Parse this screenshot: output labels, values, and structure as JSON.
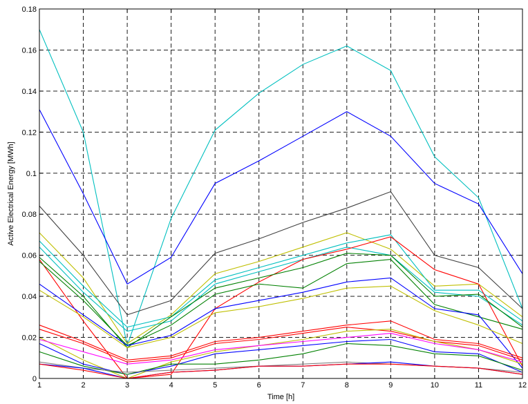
{
  "chart_data": {
    "type": "line",
    "title": "",
    "xlabel": "Time [h]",
    "ylabel": "Active Electrical Energy [MWh]",
    "xlim": [
      1,
      12
    ],
    "ylim": [
      0,
      0.18
    ],
    "grid": true,
    "x": [
      1,
      2,
      3,
      4,
      5,
      6,
      7,
      8,
      9,
      10,
      11,
      12
    ],
    "x_tick_labels": [
      "1",
      "2",
      "3",
      "4",
      "5",
      "6",
      "7",
      "8",
      "9",
      "10",
      "11",
      "12"
    ],
    "y_ticks": [
      0,
      0.02,
      0.04,
      0.06,
      0.08,
      0.1,
      0.12,
      0.14,
      0.16,
      0.18
    ],
    "y_tick_labels": [
      "0",
      "0.02",
      "0.04",
      "0.06",
      "0.08",
      "0.1",
      "0.12",
      "0.14",
      "0.16",
      "0.18"
    ],
    "series": [
      {
        "color": "#00bfbf",
        "values": [
          0.17,
          0.12,
          0.016,
          0.078,
          0.121,
          0.139,
          0.153,
          0.162,
          0.15,
          0.108,
          0.088,
          0.034
        ]
      },
      {
        "color": "#0000ff",
        "values": [
          0.131,
          0.09,
          0.046,
          0.059,
          0.095,
          0.106,
          0.118,
          0.13,
          0.118,
          0.095,
          0.085,
          0.051
        ]
      },
      {
        "color": "#404040",
        "values": [
          0.084,
          0.06,
          0.031,
          0.038,
          0.061,
          0.068,
          0.076,
          0.083,
          0.091,
          0.06,
          0.054,
          0.034
        ]
      },
      {
        "color": "#bfbf00",
        "values": [
          0.071,
          0.049,
          0.017,
          0.031,
          0.051,
          0.057,
          0.064,
          0.071,
          0.063,
          0.045,
          0.046,
          0.03
        ]
      },
      {
        "color": "#00bfbf",
        "values": [
          0.067,
          0.045,
          0.025,
          0.03,
          0.048,
          0.054,
          0.06,
          0.066,
          0.07,
          0.043,
          0.043,
          0.028
        ]
      },
      {
        "color": "#00bfbf",
        "values": [
          0.064,
          0.042,
          0.023,
          0.028,
          0.046,
          0.052,
          0.058,
          0.064,
          0.06,
          0.042,
          0.04,
          0.026
        ]
      },
      {
        "color": "#ff0000",
        "values": [
          0.058,
          0.028,
          0.0,
          0.002,
          0.034,
          0.047,
          0.058,
          0.063,
          0.069,
          0.053,
          0.046,
          0.006
        ]
      },
      {
        "color": "#008000",
        "values": [
          0.059,
          0.04,
          0.015,
          0.03,
          0.044,
          0.049,
          0.054,
          0.061,
          0.06,
          0.04,
          0.041,
          0.025
        ]
      },
      {
        "color": "#008000",
        "values": [
          0.057,
          0.038,
          0.016,
          0.026,
          0.041,
          0.046,
          0.044,
          0.056,
          0.058,
          0.036,
          0.03,
          0.024
        ]
      },
      {
        "color": "#0000ff",
        "values": [
          0.046,
          0.031,
          0.016,
          0.021,
          0.034,
          0.038,
          0.042,
          0.047,
          0.049,
          0.034,
          0.031,
          0.005
        ]
      },
      {
        "color": "#bfbf00",
        "values": [
          0.043,
          0.03,
          0.015,
          0.02,
          0.032,
          0.035,
          0.039,
          0.044,
          0.045,
          0.033,
          0.026,
          0.017
        ]
      },
      {
        "color": "#ff0000",
        "values": [
          0.026,
          0.018,
          0.009,
          0.011,
          0.018,
          0.02,
          0.023,
          0.026,
          0.028,
          0.019,
          0.017,
          0.01
        ]
      },
      {
        "color": "#ff0000",
        "values": [
          0.024,
          0.017,
          0.008,
          0.01,
          0.017,
          0.019,
          0.022,
          0.025,
          0.023,
          0.018,
          0.016,
          0.009
        ]
      },
      {
        "color": "#bfbf00",
        "values": [
          0.02,
          0.009,
          0.0,
          0.008,
          0.013,
          0.016,
          0.019,
          0.023,
          0.024,
          0.018,
          0.014,
          0.007
        ]
      },
      {
        "color": "#ff00ff",
        "values": [
          0.019,
          0.013,
          0.007,
          0.009,
          0.014,
          0.016,
          0.018,
          0.02,
          0.022,
          0.017,
          0.014,
          0.008
        ]
      },
      {
        "color": "#0000ff",
        "values": [
          0.017,
          0.007,
          0.002,
          0.006,
          0.012,
          0.014,
          0.016,
          0.018,
          0.019,
          0.013,
          0.012,
          0.003
        ]
      },
      {
        "color": "#008000",
        "values": [
          0.013,
          0.006,
          0.002,
          0.007,
          0.007,
          0.009,
          0.012,
          0.017,
          0.016,
          0.012,
          0.011,
          0.004
        ]
      },
      {
        "color": "#808080",
        "values": [
          0.008,
          0.005,
          0.003,
          0.004,
          0.005,
          0.006,
          0.007,
          0.008,
          0.007,
          0.006,
          0.005,
          0.003
        ]
      },
      {
        "color": "#0000ff",
        "values": [
          0.007,
          0.005,
          0.0,
          0.003,
          0.004,
          0.006,
          0.006,
          0.007,
          0.008,
          0.006,
          0.005,
          0.002
        ]
      },
      {
        "color": "#ff0000",
        "values": [
          0.007,
          0.004,
          0.0,
          0.003,
          0.004,
          0.006,
          0.006,
          0.007,
          0.007,
          0.006,
          0.005,
          0.002
        ]
      }
    ]
  }
}
